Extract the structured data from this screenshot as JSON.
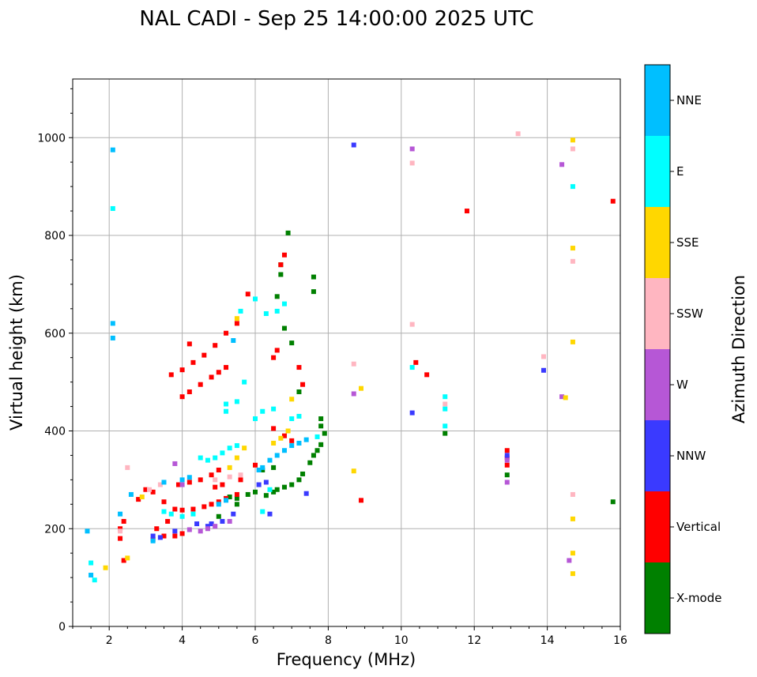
{
  "chart_data": {
    "type": "scatter",
    "title": "NAL CADI - Sep 25 14:00:00 2025 UTC",
    "xlabel": "Frequency (MHz)",
    "ylabel": "Virtual height (km)",
    "xlim": [
      1,
      16
    ],
    "ylim": [
      0,
      1120
    ],
    "xticks": [
      2,
      4,
      6,
      8,
      10,
      12,
      14,
      16
    ],
    "yticks": [
      0,
      200,
      400,
      600,
      800,
      1000
    ],
    "grid": true,
    "colorbar": {
      "title": "Azimuth Direction",
      "categories": [
        {
          "name": "X-mode",
          "color": "#008000"
        },
        {
          "name": "Vertical",
          "color": "#ff0000"
        },
        {
          "name": "NNW",
          "color": "#3a3aff"
        },
        {
          "name": "W",
          "color": "#b657d6"
        },
        {
          "name": "SSW",
          "color": "#ffb6c1"
        },
        {
          "name": "SSE",
          "color": "#ffd700"
        },
        {
          "name": "E",
          "color": "#00ffff"
        },
        {
          "name": "NNE",
          "color": "#00bfff"
        }
      ]
    },
    "series": [
      {
        "name": "X-mode",
        "points": [
          [
            5.3,
            265
          ],
          [
            5.5,
            262
          ],
          [
            5.8,
            270
          ],
          [
            6.0,
            275
          ],
          [
            6.3,
            268
          ],
          [
            6.5,
            275
          ],
          [
            6.6,
            280
          ],
          [
            6.8,
            285
          ],
          [
            7.0,
            290
          ],
          [
            7.2,
            300
          ],
          [
            7.3,
            312
          ],
          [
            7.5,
            335
          ],
          [
            7.6,
            350
          ],
          [
            7.7,
            360
          ],
          [
            7.8,
            372
          ],
          [
            7.9,
            395
          ],
          [
            7.8,
            410
          ],
          [
            7.8,
            425
          ],
          [
            7.2,
            480
          ],
          [
            7.0,
            580
          ],
          [
            6.8,
            610
          ],
          [
            6.7,
            720
          ],
          [
            6.7,
            740
          ],
          [
            6.6,
            675
          ],
          [
            6.9,
            805
          ],
          [
            7.6,
            685
          ],
          [
            7.6,
            715
          ],
          [
            11.2,
            395
          ],
          [
            12.9,
            310
          ],
          [
            15.8,
            255
          ],
          [
            5.0,
            225
          ],
          [
            5.5,
            250
          ],
          [
            6.2,
            320
          ],
          [
            6.5,
            325
          ]
        ]
      },
      {
        "name": "Vertical",
        "points": [
          [
            2.3,
            200
          ],
          [
            2.4,
            215
          ],
          [
            2.3,
            180
          ],
          [
            2.4,
            135
          ],
          [
            2.8,
            260
          ],
          [
            3.0,
            280
          ],
          [
            3.2,
            275
          ],
          [
            3.5,
            255
          ],
          [
            3.8,
            240
          ],
          [
            4.0,
            238
          ],
          [
            4.3,
            240
          ],
          [
            4.6,
            245
          ],
          [
            4.8,
            250
          ],
          [
            5.0,
            255
          ],
          [
            5.2,
            262
          ],
          [
            5.5,
            270
          ],
          [
            3.2,
            178
          ],
          [
            3.5,
            185
          ],
          [
            3.8,
            185
          ],
          [
            4.0,
            190
          ],
          [
            3.3,
            200
          ],
          [
            3.6,
            215
          ],
          [
            3.9,
            290
          ],
          [
            4.2,
            295
          ],
          [
            4.5,
            300
          ],
          [
            4.8,
            310
          ],
          [
            5.0,
            320
          ],
          [
            4.0,
            470
          ],
          [
            4.2,
            480
          ],
          [
            4.5,
            495
          ],
          [
            4.8,
            510
          ],
          [
            5.0,
            520
          ],
          [
            5.2,
            530
          ],
          [
            3.7,
            515
          ],
          [
            4.0,
            525
          ],
          [
            4.3,
            540
          ],
          [
            4.6,
            555
          ],
          [
            4.9,
            575
          ],
          [
            5.2,
            600
          ],
          [
            5.5,
            620
          ],
          [
            4.2,
            578
          ],
          [
            5.8,
            680
          ],
          [
            6.5,
            405
          ],
          [
            6.8,
            390
          ],
          [
            7.0,
            380
          ],
          [
            6.5,
            550
          ],
          [
            6.6,
            565
          ],
          [
            6.7,
            740
          ],
          [
            6.8,
            760
          ],
          [
            7.2,
            530
          ],
          [
            7.3,
            495
          ],
          [
            8.9,
            258
          ],
          [
            10.4,
            540
          ],
          [
            10.7,
            515
          ],
          [
            11.8,
            850
          ],
          [
            12.9,
            360
          ],
          [
            12.9,
            345
          ],
          [
            12.9,
            330
          ],
          [
            15.8,
            870
          ],
          [
            5.6,
            300
          ],
          [
            6.0,
            330
          ],
          [
            4.9,
            285
          ],
          [
            5.1,
            290
          ]
        ]
      },
      {
        "name": "NNW",
        "points": [
          [
            3.2,
            185
          ],
          [
            3.4,
            182
          ],
          [
            4.4,
            210
          ],
          [
            4.7,
            205
          ],
          [
            4.8,
            210
          ],
          [
            5.1,
            215
          ],
          [
            5.4,
            230
          ],
          [
            6.4,
            230
          ],
          [
            7.4,
            272
          ],
          [
            3.8,
            195
          ],
          [
            8.7,
            985
          ],
          [
            10.3,
            437
          ],
          [
            13.9,
            524
          ],
          [
            12.9,
            350
          ],
          [
            6.3,
            295
          ],
          [
            6.1,
            290
          ]
        ]
      },
      {
        "name": "W",
        "points": [
          [
            3.8,
            333
          ],
          [
            4.2,
            198
          ],
          [
            4.5,
            195
          ],
          [
            4.7,
            200
          ],
          [
            4.9,
            205
          ],
          [
            5.3,
            215
          ],
          [
            8.7,
            476
          ],
          [
            10.3,
            977
          ],
          [
            14.4,
            945
          ],
          [
            14.4,
            470
          ],
          [
            14.6,
            135
          ],
          [
            12.9,
            295
          ],
          [
            12.9,
            340
          ],
          [
            4.0,
            290
          ]
        ]
      },
      {
        "name": "SSW",
        "points": [
          [
            2.5,
            325
          ],
          [
            3.1,
            280
          ],
          [
            3.4,
            290
          ],
          [
            4.9,
            300
          ],
          [
            5.3,
            306
          ],
          [
            5.6,
            310
          ],
          [
            8.7,
            537
          ],
          [
            10.3,
            948
          ],
          [
            10.3,
            618
          ],
          [
            13.2,
            1008
          ],
          [
            13.9,
            552
          ],
          [
            14.7,
            977
          ],
          [
            14.7,
            747
          ],
          [
            14.7,
            270
          ],
          [
            11.2,
            455
          ],
          [
            2.3,
            195
          ]
        ]
      },
      {
        "name": "SSE",
        "points": [
          [
            1.9,
            120
          ],
          [
            2.5,
            140
          ],
          [
            5.3,
            325
          ],
          [
            5.5,
            345
          ],
          [
            5.7,
            365
          ],
          [
            6.5,
            375
          ],
          [
            6.7,
            385
          ],
          [
            6.9,
            400
          ],
          [
            7.0,
            465
          ],
          [
            5.5,
            630
          ],
          [
            8.9,
            487
          ],
          [
            8.7,
            318
          ],
          [
            14.5,
            468
          ],
          [
            14.7,
            995
          ],
          [
            14.7,
            774
          ],
          [
            14.7,
            582
          ],
          [
            14.7,
            220
          ],
          [
            14.7,
            150
          ],
          [
            14.7,
            108
          ],
          [
            2.9,
            265
          ]
        ]
      },
      {
        "name": "E",
        "points": [
          [
            1.5,
            130
          ],
          [
            1.6,
            95
          ],
          [
            2.1,
            855
          ],
          [
            3.5,
            235
          ],
          [
            3.7,
            230
          ],
          [
            4.0,
            225
          ],
          [
            4.3,
            230
          ],
          [
            4.5,
            345
          ],
          [
            4.7,
            340
          ],
          [
            4.9,
            345
          ],
          [
            5.1,
            355
          ],
          [
            5.3,
            365
          ],
          [
            5.5,
            370
          ],
          [
            5.2,
            440
          ],
          [
            5.2,
            455
          ],
          [
            5.5,
            460
          ],
          [
            5.7,
            500
          ],
          [
            6.0,
            425
          ],
          [
            6.2,
            440
          ],
          [
            6.5,
            445
          ],
          [
            6.6,
            645
          ],
          [
            6.8,
            660
          ],
          [
            7.0,
            425
          ],
          [
            7.2,
            430
          ],
          [
            6.0,
            670
          ],
          [
            6.3,
            640
          ],
          [
            10.3,
            530
          ],
          [
            11.2,
            470
          ],
          [
            11.2,
            445
          ],
          [
            11.2,
            410
          ],
          [
            14.7,
            900
          ],
          [
            5.6,
            645
          ],
          [
            6.4,
            280
          ],
          [
            6.2,
            235
          ],
          [
            7.7,
            388
          ]
        ]
      },
      {
        "name": "NNE",
        "points": [
          [
            1.4,
            195
          ],
          [
            1.5,
            105
          ],
          [
            2.1,
            975
          ],
          [
            2.1,
            620
          ],
          [
            2.1,
            590
          ],
          [
            2.3,
            230
          ],
          [
            2.6,
            270
          ],
          [
            3.2,
            175
          ],
          [
            3.5,
            295
          ],
          [
            4.0,
            300
          ],
          [
            4.2,
            305
          ],
          [
            5.4,
            585
          ],
          [
            6.2,
            325
          ],
          [
            6.4,
            340
          ],
          [
            6.6,
            350
          ],
          [
            6.8,
            360
          ],
          [
            7.0,
            370
          ],
          [
            7.2,
            375
          ],
          [
            7.4,
            382
          ],
          [
            5.0,
            250
          ],
          [
            5.2,
            258
          ],
          [
            6.1,
            320
          ]
        ]
      }
    ]
  }
}
